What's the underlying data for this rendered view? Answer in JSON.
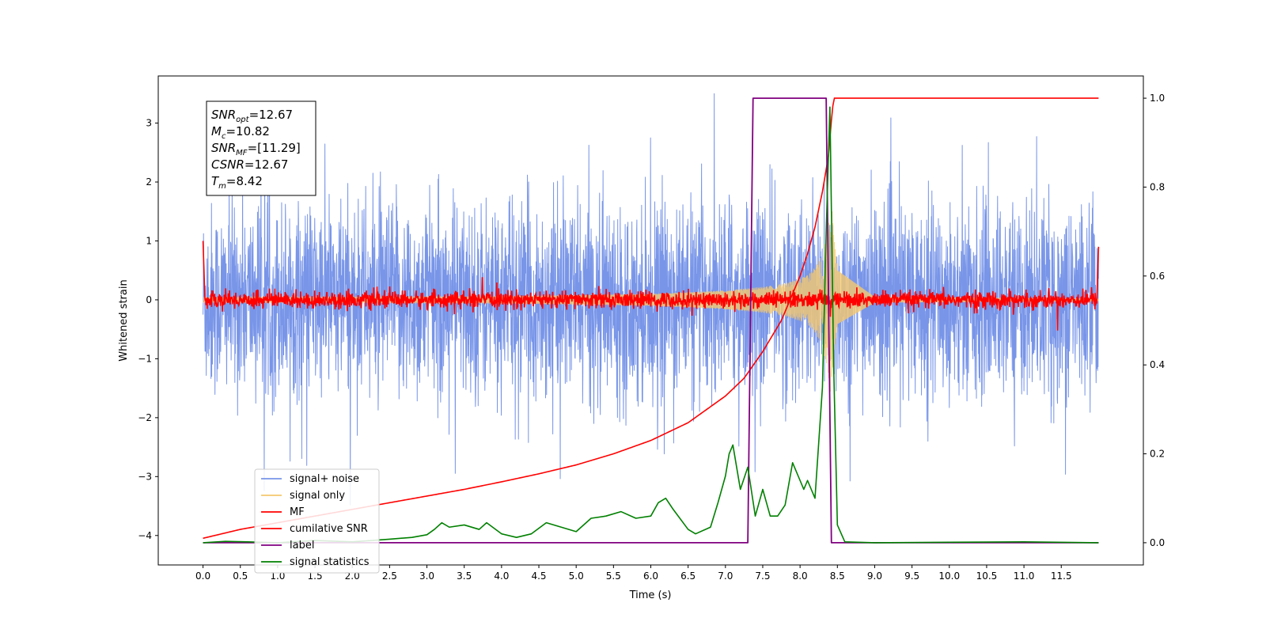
{
  "chart_data": {
    "type": "line",
    "title": "",
    "xlabel": "Time (s)",
    "ylabel": "Whitened strain",
    "ylabel_right": "",
    "xlim": [
      -0.6,
      12.6
    ],
    "ylim": [
      -4.5,
      3.8
    ],
    "ylim_right": [
      -0.05,
      1.05
    ],
    "x_ticks": [
      "0.0",
      "0.5",
      "1.0",
      "1.5",
      "2.0",
      "2.5",
      "3.0",
      "3.5",
      "4.0",
      "4.5",
      "5.0",
      "5.5",
      "6.0",
      "6.5",
      "7.0",
      "7.5",
      "8.0",
      "8.5",
      "9.0",
      "9.5",
      "10.0",
      "10.5",
      "11.0",
      "11.5"
    ],
    "y_ticks": [
      "3",
      "2",
      "1",
      "0",
      "−1",
      "−2",
      "−3",
      "−4"
    ],
    "y_ticks_right": [
      "1.0",
      "0.8",
      "0.6",
      "0.4",
      "0.2",
      "0.0"
    ],
    "grid": false,
    "legend_position": "lower-left",
    "annotation": {
      "lines": [
        {
          "sym": "SNR",
          "sub": "opt",
          "value": "=12.67"
        },
        {
          "sym": "M",
          "sub": "c",
          "value": "=10.82"
        },
        {
          "sym": "SNR",
          "sub": "MF",
          "value": "=[11.29]"
        },
        {
          "sym": "CSNR",
          "sub": "",
          "value": "=12.67"
        },
        {
          "sym": "T",
          "sub": "m",
          "value": "=8.42"
        }
      ]
    },
    "series": [
      {
        "name": "signal+ noise",
        "color": "#7895e8",
        "axis": "left",
        "kind": "noise",
        "x_range": [
          0,
          12
        ],
        "noise_std": 0.95,
        "chirp_end": 8.42
      },
      {
        "name": "signal only",
        "color": "#f5c86e",
        "axis": "left",
        "kind": "chirp",
        "x": [
          0,
          4.0,
          6.0,
          7.0,
          7.5,
          7.8,
          8.0,
          8.1,
          8.2,
          8.3,
          8.35,
          8.4,
          8.42,
          8.45,
          8.5,
          9.0,
          12.0
        ],
        "envelope": [
          0.04,
          0.06,
          0.1,
          0.16,
          0.22,
          0.28,
          0.36,
          0.42,
          0.55,
          0.78,
          1.1,
          1.5,
          1.7,
          1.1,
          0.5,
          0.05,
          0.02
        ]
      },
      {
        "name": "MF",
        "color": "#ff0000",
        "axis": "left",
        "kind": "mf",
        "x_range": [
          0,
          12
        ],
        "start_value": 1.0,
        "end_value": 0.9,
        "noise_std": 0.07
      },
      {
        "name": "cumilative SNR",
        "color": "#ff0000",
        "axis": "right",
        "x": [
          0.0,
          0.5,
          1.0,
          1.5,
          2.0,
          2.5,
          3.0,
          3.5,
          4.0,
          4.5,
          5.0,
          5.5,
          6.0,
          6.5,
          7.0,
          7.25,
          7.5,
          7.75,
          8.0,
          8.1,
          8.2,
          8.3,
          8.38,
          8.42,
          8.45,
          12.0
        ],
        "values": [
          0.01,
          0.03,
          0.045,
          0.06,
          0.075,
          0.09,
          0.105,
          0.12,
          0.137,
          0.155,
          0.175,
          0.2,
          0.23,
          0.27,
          0.33,
          0.37,
          0.43,
          0.5,
          0.6,
          0.65,
          0.71,
          0.79,
          0.87,
          0.95,
          1.0,
          1.0
        ]
      },
      {
        "name": "label",
        "color": "#800080",
        "axis": "right",
        "x": [
          0.0,
          7.3,
          7.37,
          8.35,
          8.42,
          12.0
        ],
        "values": [
          0.0,
          0.0,
          1.0,
          1.0,
          0.0,
          0.0
        ]
      },
      {
        "name": "signal statistics",
        "color": "#008000",
        "axis": "right",
        "x": [
          0.0,
          0.3,
          0.6,
          1.0,
          1.5,
          2.0,
          2.5,
          2.8,
          3.0,
          3.1,
          3.2,
          3.3,
          3.5,
          3.7,
          3.8,
          4.0,
          4.2,
          4.4,
          4.6,
          4.8,
          5.0,
          5.2,
          5.4,
          5.6,
          5.8,
          6.0,
          6.1,
          6.2,
          6.3,
          6.5,
          6.6,
          6.8,
          6.9,
          7.0,
          7.05,
          7.1,
          7.2,
          7.3,
          7.4,
          7.5,
          7.6,
          7.7,
          7.8,
          7.9,
          8.0,
          8.05,
          8.1,
          8.2,
          8.3,
          8.35,
          8.4,
          8.45,
          8.5,
          8.6,
          9.0,
          10.0,
          11.0,
          12.0
        ],
        "values": [
          0.0,
          0.003,
          0.002,
          0.0,
          0.005,
          0.002,
          0.008,
          0.012,
          0.018,
          0.03,
          0.045,
          0.035,
          0.04,
          0.03,
          0.045,
          0.02,
          0.012,
          0.02,
          0.045,
          0.035,
          0.025,
          0.055,
          0.06,
          0.07,
          0.055,
          0.06,
          0.09,
          0.1,
          0.075,
          0.03,
          0.02,
          0.035,
          0.09,
          0.15,
          0.2,
          0.22,
          0.12,
          0.17,
          0.06,
          0.12,
          0.06,
          0.06,
          0.085,
          0.18,
          0.14,
          0.12,
          0.14,
          0.1,
          0.35,
          0.7,
          0.98,
          0.4,
          0.04,
          0.002,
          0.0,
          0.001,
          0.002,
          0.0
        ]
      }
    ]
  }
}
